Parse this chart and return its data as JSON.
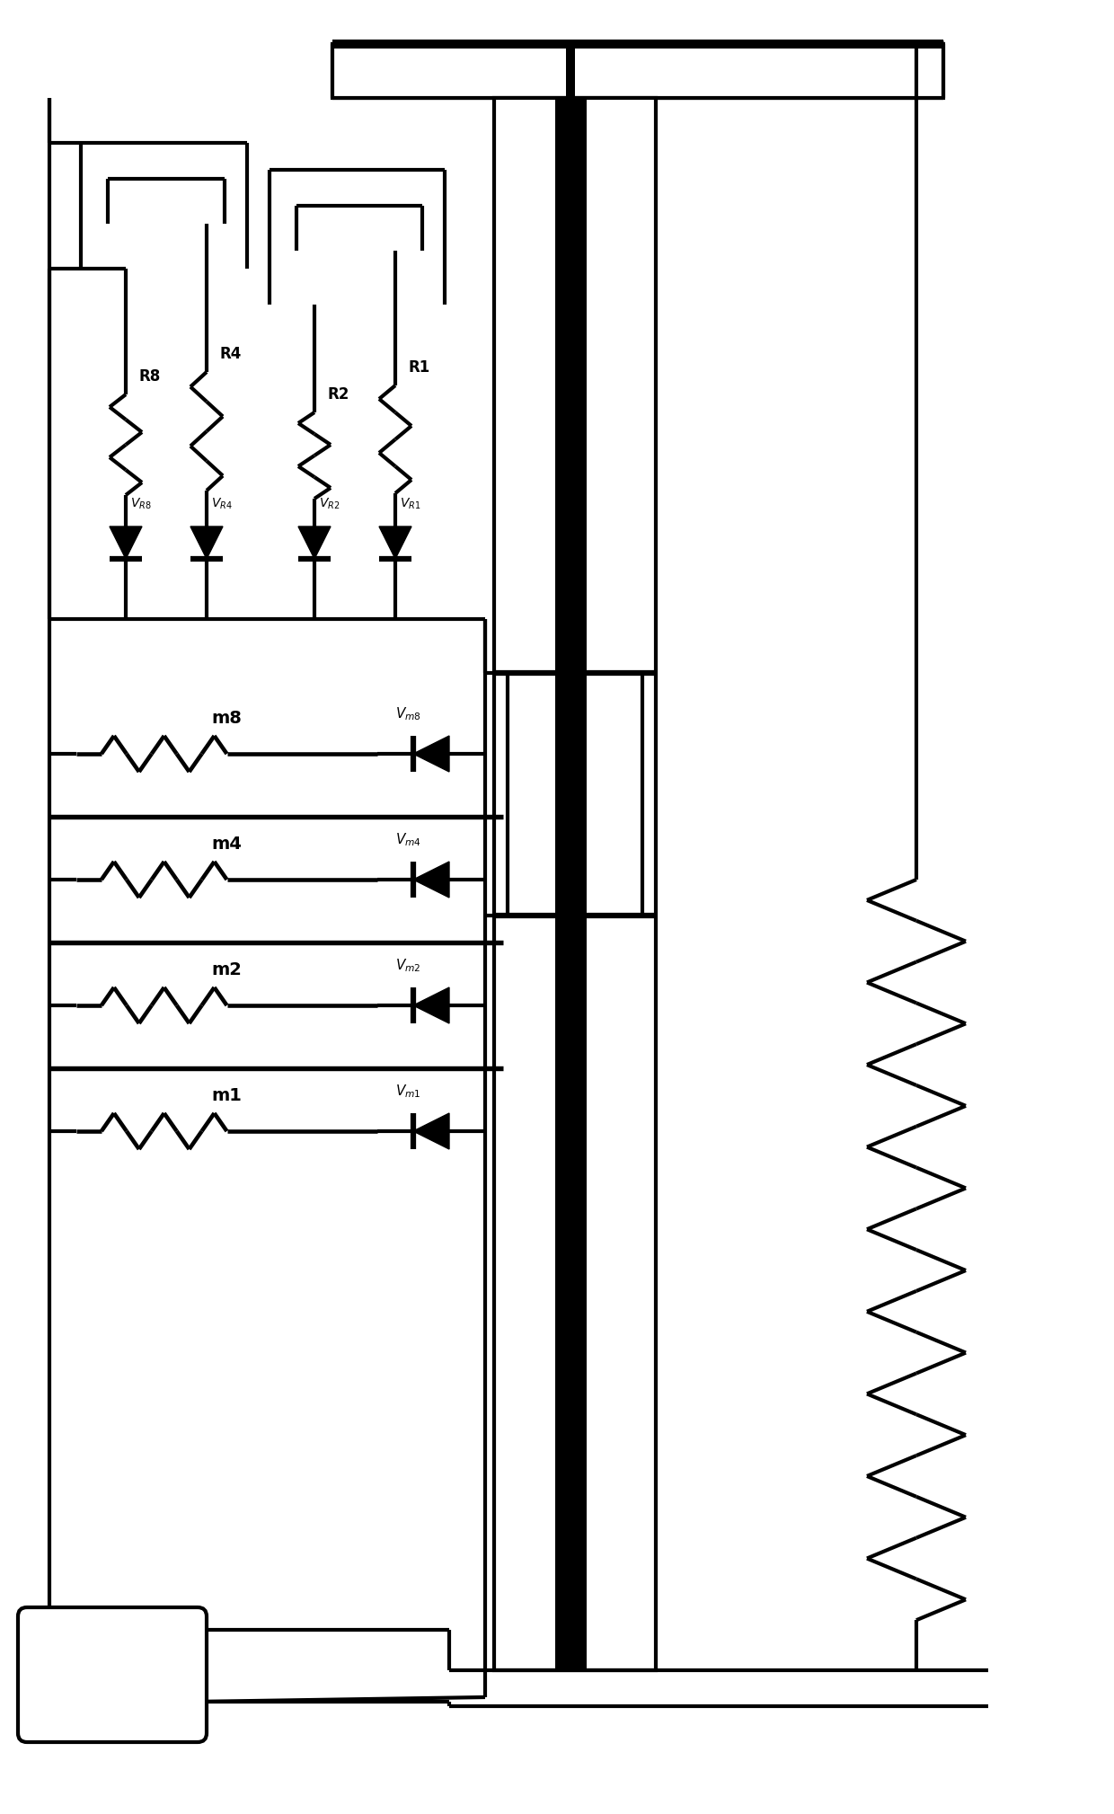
{
  "bg": "#ffffff",
  "lc": "#000000",
  "lw": 3.0,
  "tlw": 9.0,
  "fig_w": 12.4,
  "fig_h": 20.19,
  "r_labels": [
    "R8",
    "R4",
    "R2",
    "R1"
  ],
  "vr_labels": [
    "V_{R8}",
    "V_{R4}",
    "V_{R2}",
    "V_{R1}"
  ],
  "m_labels": [
    "m8",
    "m4",
    "m2",
    "m1"
  ],
  "vm_labels": [
    "V_{m8}",
    "V_{m4}",
    "V_{m2}",
    "V_{m1}"
  ]
}
